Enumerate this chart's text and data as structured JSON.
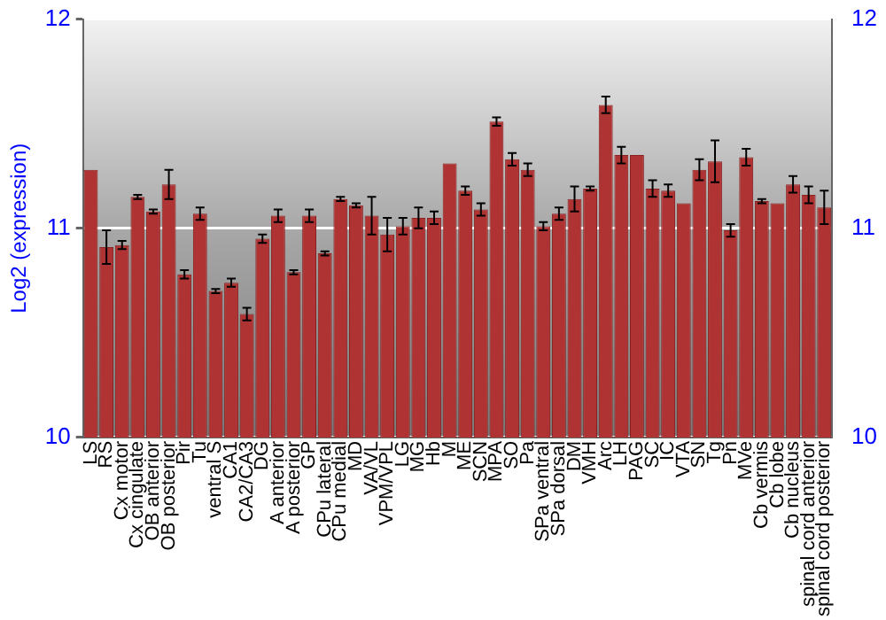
{
  "chart_data": {
    "type": "bar",
    "ylabel": "Log2 (expression)",
    "categories": [
      "LS",
      "RS",
      "Cx motor",
      "Cx cingulate",
      "OB anterior",
      "OB posterior",
      "Pir",
      "Tu",
      "ventral S",
      "CA1",
      "CA2/CA3",
      "DG",
      "A anterior",
      "A posterior",
      "GP",
      "CPu lateral",
      "CPu medial",
      "MD",
      "VA/VL",
      "VPM/VPL",
      "LG",
      "MG",
      "Hb",
      "M",
      "ME",
      "SCN",
      "MPA",
      "SO",
      "Pa",
      "SPa ventral",
      "SPa dorsal",
      "DM",
      "VMH",
      "Arc",
      "LH",
      "PAG",
      "SC",
      "IC",
      "VTA",
      "SN",
      "Tg",
      "Pn",
      "MVe",
      "Cb vermis",
      "Cb lobe",
      "Cb nucleus",
      "spinal cord anterior",
      "spinal cord posterior"
    ],
    "values": [
      11.28,
      10.91,
      10.92,
      11.15,
      11.08,
      11.21,
      10.78,
      11.07,
      10.7,
      10.74,
      10.59,
      10.95,
      11.06,
      10.79,
      11.06,
      10.88,
      11.14,
      11.11,
      11.06,
      10.97,
      11.01,
      11.05,
      11.05,
      11.31,
      11.18,
      11.09,
      11.51,
      11.33,
      11.28,
      11.01,
      11.07,
      11.14,
      11.19,
      11.59,
      11.35,
      11.35,
      11.19,
      11.18,
      11.12,
      11.28,
      11.32,
      10.99,
      11.34,
      11.13,
      11.12,
      11.21,
      11.16,
      11.1
    ],
    "errors": [
      null,
      0.08,
      0.02,
      0.01,
      0.01,
      0.07,
      0.02,
      0.03,
      0.01,
      0.02,
      0.03,
      0.02,
      0.03,
      0.01,
      0.03,
      0.01,
      0.01,
      0.01,
      0.09,
      0.08,
      0.04,
      0.05,
      0.03,
      null,
      0.02,
      0.03,
      0.02,
      0.03,
      0.03,
      0.02,
      0.03,
      0.06,
      0.01,
      0.04,
      0.04,
      null,
      0.04,
      0.03,
      null,
      0.05,
      0.1,
      0.03,
      0.04,
      0.01,
      null,
      0.04,
      0.04,
      0.08
    ],
    "color": "#b03333",
    "ylim": [
      10,
      12
    ],
    "yticks": [
      10,
      11,
      12
    ],
    "y2lim": [
      10,
      12
    ],
    "y2ticks": [
      10,
      11,
      12
    ],
    "grid": "y",
    "legend": false
  }
}
